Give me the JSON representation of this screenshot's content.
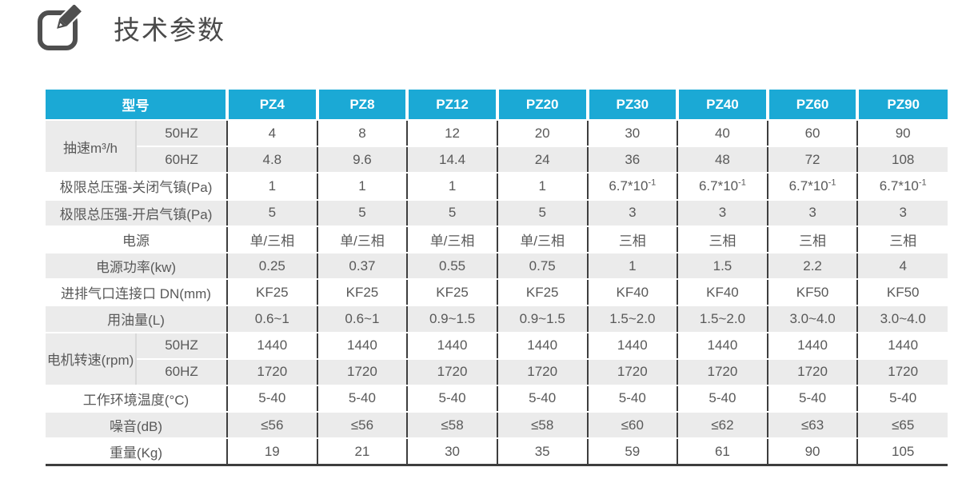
{
  "page_title": {
    "text": "技术参数"
  },
  "colors": {
    "header_bg": "#1BA9D5",
    "row_alt_bg": "#EBEBEB",
    "border_dark": "#3E3E3E",
    "text": "#595959",
    "title_text": "#4A4A4A",
    "icon": "#4F4F4F"
  },
  "table": {
    "corner_label": "型号",
    "models": [
      "PZ4",
      "PZ8",
      "PZ12",
      "PZ20",
      "PZ30",
      "PZ40",
      "PZ60",
      "PZ90"
    ],
    "rows": [
      {
        "key": "pumping-speed-50hz",
        "group": "抽速m³/h",
        "sub": "50HZ",
        "values": [
          "4",
          "8",
          "12",
          "20",
          "30",
          "40",
          "60",
          "90"
        ]
      },
      {
        "key": "pumping-speed-60hz",
        "sub": "60HZ",
        "values": [
          "4.8",
          "9.6",
          "14.4",
          "24",
          "36",
          "48",
          "72",
          "108"
        ]
      },
      {
        "key": "ultimate-pressure-ballast-closed",
        "label": "极限总压强-关闭气镇(Pa)",
        "values": [
          "1",
          "1",
          "1",
          "1",
          "6.7*10^-1",
          "6.7*10^-1",
          "6.7*10^-1",
          "6.7*10^-1"
        ]
      },
      {
        "key": "ultimate-pressure-ballast-open",
        "label": "极限总压强-开启气镇(Pa)",
        "values": [
          "5",
          "5",
          "5",
          "5",
          "3",
          "3",
          "3",
          "3"
        ]
      },
      {
        "key": "power-supply",
        "label": "电源",
        "values": [
          "单/三相",
          "单/三相",
          "单/三相",
          "单/三相",
          "三相",
          "三相",
          "三相",
          "三相"
        ]
      },
      {
        "key": "motor-power",
        "label": "电源功率(kw)",
        "values": [
          "0.25",
          "0.37",
          "0.55",
          "0.75",
          "1",
          "1.5",
          "2.2",
          "4"
        ]
      },
      {
        "key": "inlet-outlet-connection",
        "label": "进排气口连接口 DN(mm)",
        "values": [
          "KF25",
          "KF25",
          "KF25",
          "KF25",
          "KF40",
          "KF40",
          "KF50",
          "KF50"
        ]
      },
      {
        "key": "oil-capacity",
        "label": "用油量(L)",
        "values": [
          "0.6~1",
          "0.6~1",
          "0.9~1.5",
          "0.9~1.5",
          "1.5~2.0",
          "1.5~2.0",
          "3.0~4.0",
          "3.0~4.0"
        ]
      },
      {
        "key": "motor-speed-50hz",
        "group": "电机转速(rpm)",
        "sub": "50HZ",
        "values": [
          "1440",
          "1440",
          "1440",
          "1440",
          "1440",
          "1440",
          "1440",
          "1440"
        ]
      },
      {
        "key": "motor-speed-60hz",
        "sub": "60HZ",
        "values": [
          "1720",
          "1720",
          "1720",
          "1720",
          "1720",
          "1720",
          "1720",
          "1720"
        ]
      },
      {
        "key": "operating-temperature",
        "label": "工作环境温度(°C)",
        "values": [
          "5-40",
          "5-40",
          "5-40",
          "5-40",
          "5-40",
          "5-40",
          "5-40",
          "5-40"
        ]
      },
      {
        "key": "noise",
        "label": "噪音(dB)",
        "values": [
          "≤56",
          "≤56",
          "≤58",
          "≤58",
          "≤60",
          "≤62",
          "≤63",
          "≤65"
        ]
      },
      {
        "key": "weight",
        "label": "重量(Kg)",
        "values": [
          "19",
          "21",
          "30",
          "35",
          "59",
          "61",
          "90",
          "105"
        ]
      }
    ]
  }
}
